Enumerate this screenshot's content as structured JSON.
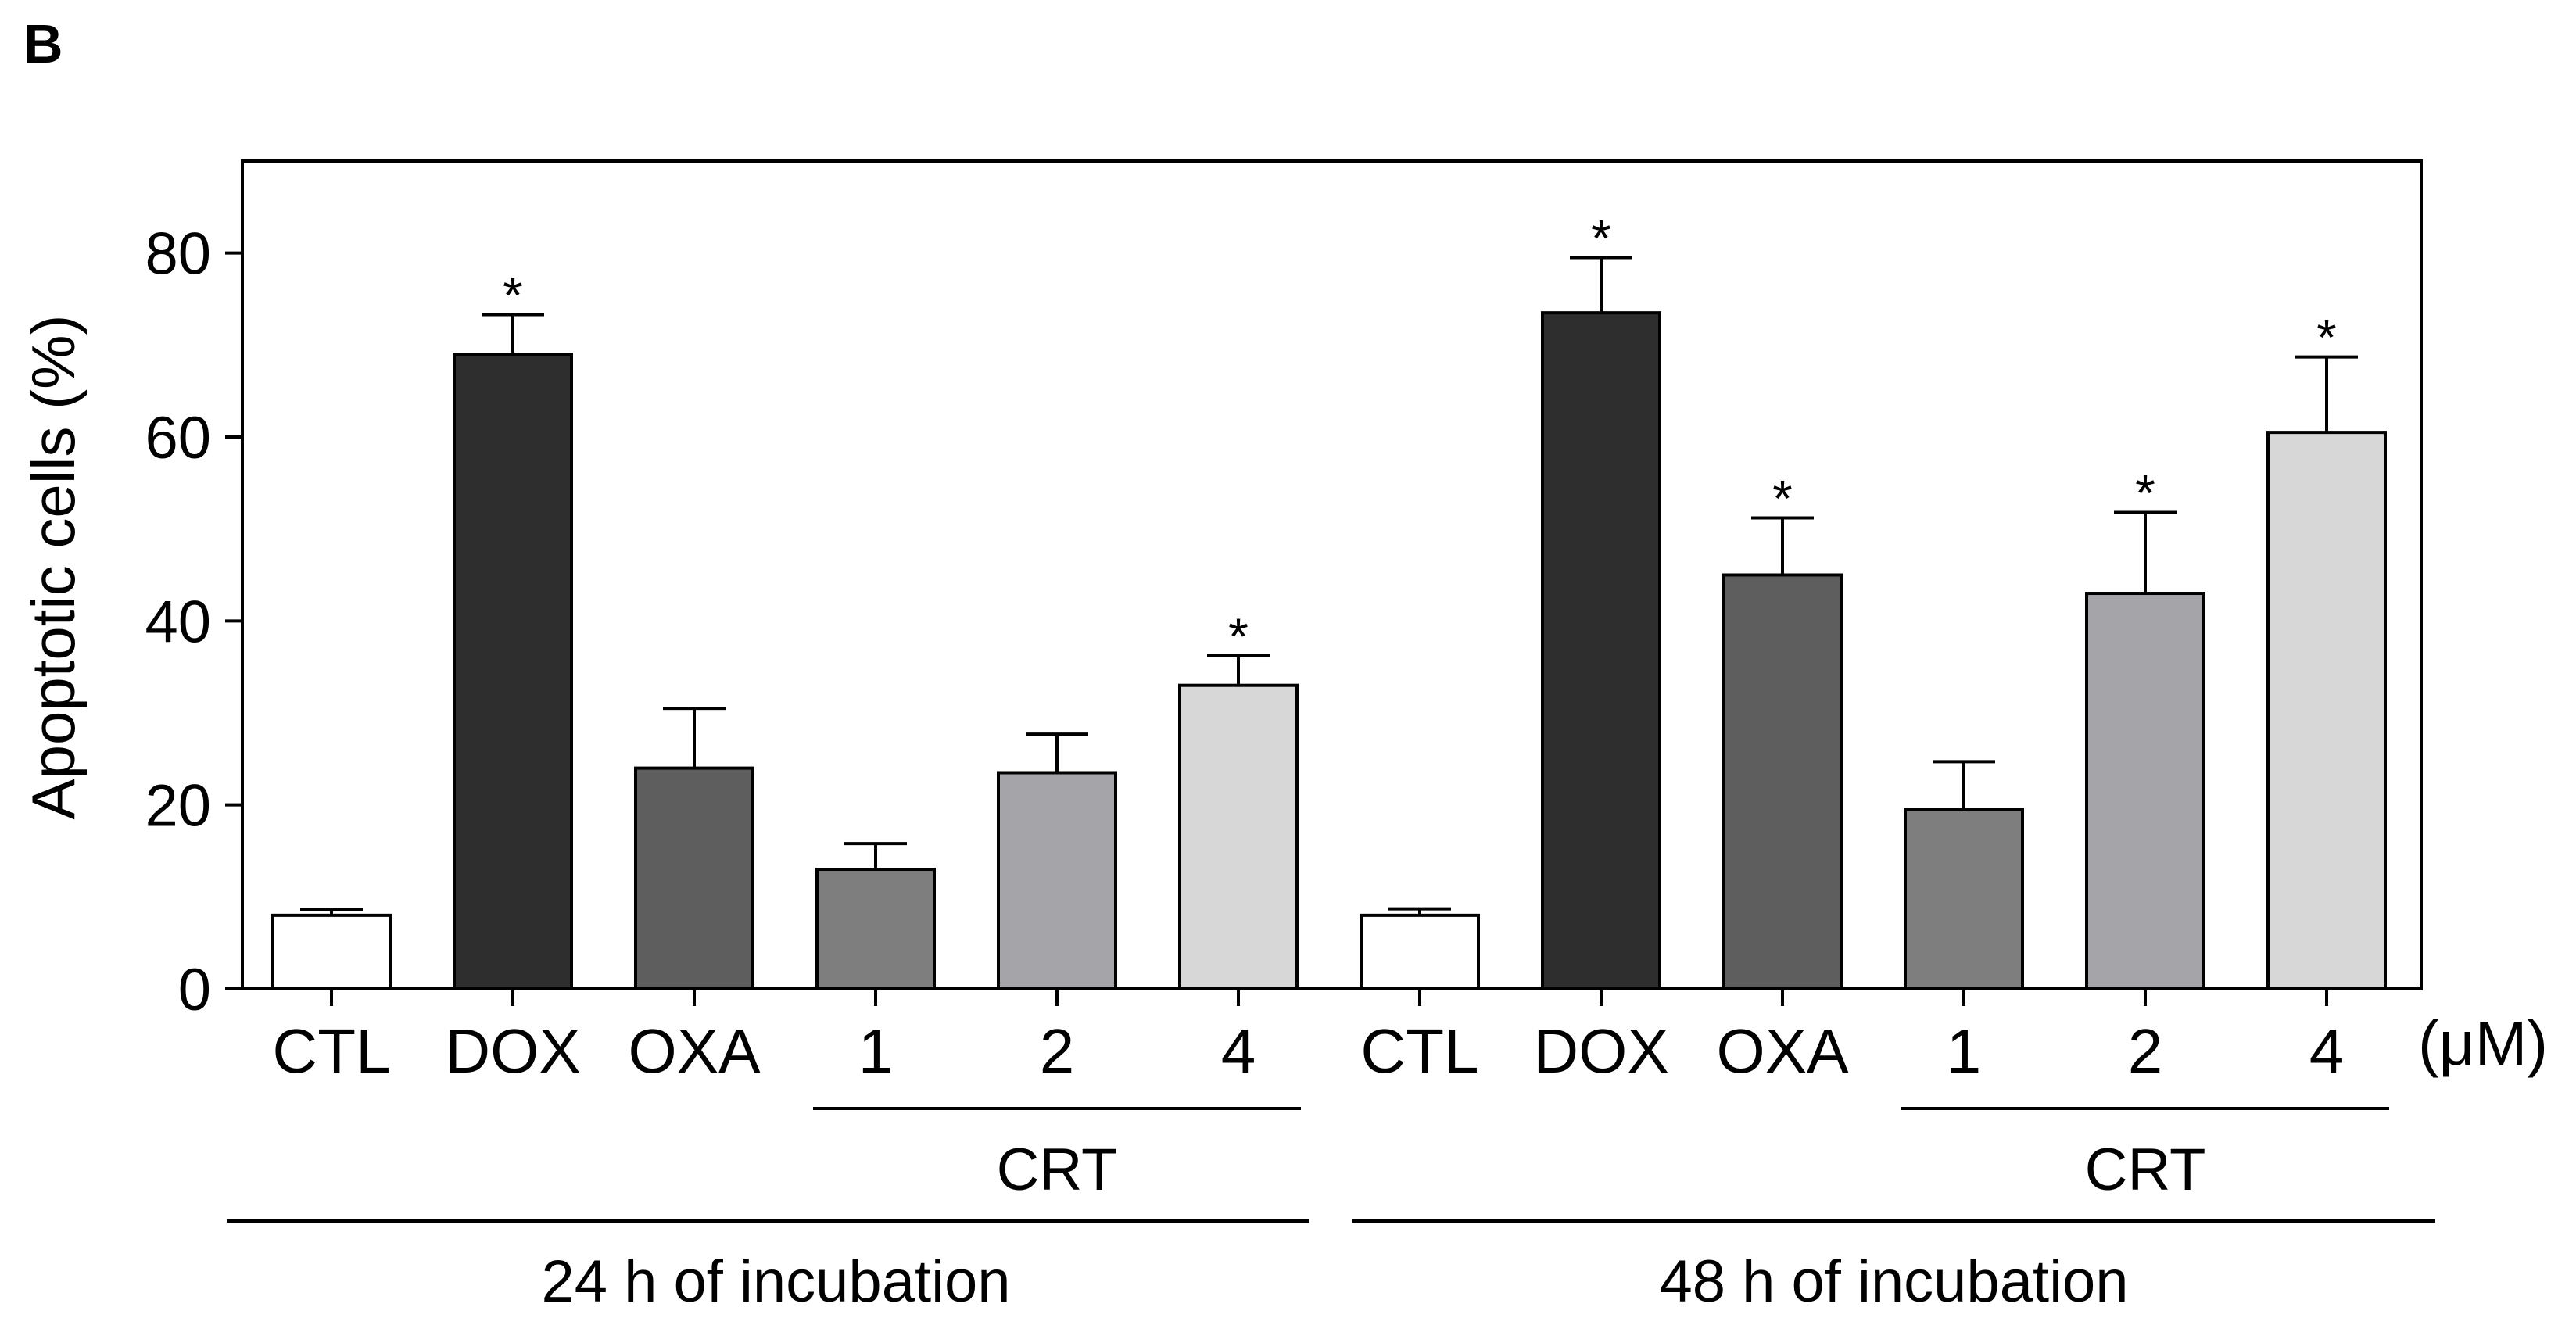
{
  "panel_label": "B",
  "colors": {
    "CTL": "#ffffff",
    "DOX": "#2e2e2e",
    "OXA": "#5e5e5e",
    "CRT1": "#7e7e7e",
    "CRT2": "#a5a4a9",
    "CRT4": "#d7d7d7",
    "stroke": "#000000"
  },
  "chart_data": {
    "type": "bar",
    "title": "",
    "ylabel": "Apoptotic cells (%)",
    "xlabel": "",
    "ylim": [
      0,
      90
    ],
    "yticks": [
      0,
      20,
      40,
      60,
      80
    ],
    "ytick_labels": [
      "0",
      "20",
      "40",
      "60",
      "80"
    ],
    "unit_label": "(μM)",
    "categories": [
      "CTL",
      "DOX",
      "OXA",
      "1",
      "2",
      "4",
      "CTL",
      "DOX",
      "OXA",
      "1",
      "2",
      "4"
    ],
    "bar_keys": [
      "CTL",
      "DOX",
      "OXA",
      "CRT1",
      "CRT2",
      "CRT4",
      "CTL",
      "DOX",
      "OXA",
      "CRT1",
      "CRT2",
      "CRT4"
    ],
    "values": [
      8,
      69,
      24,
      13,
      23.5,
      33,
      8,
      73.5,
      45,
      19.5,
      43,
      60.5
    ],
    "errors": [
      0.6,
      4.3,
      6.5,
      2.8,
      4.2,
      3.2,
      0.7,
      6,
      6.2,
      5.2,
      8.8,
      8.2
    ],
    "significant": [
      false,
      true,
      false,
      false,
      false,
      true,
      false,
      true,
      true,
      false,
      true,
      true
    ],
    "significance_marker": "*",
    "subgroups": [
      {
        "label": "CRT",
        "from": 3,
        "to": 5
      },
      {
        "label": "CRT",
        "from": 9,
        "to": 11
      }
    ],
    "groups": [
      {
        "label": "24 h of incubation",
        "from": 0,
        "to": 5
      },
      {
        "label": "48 h of incubation",
        "from": 6,
        "to": 11
      }
    ],
    "grid": false,
    "legend": "none"
  }
}
